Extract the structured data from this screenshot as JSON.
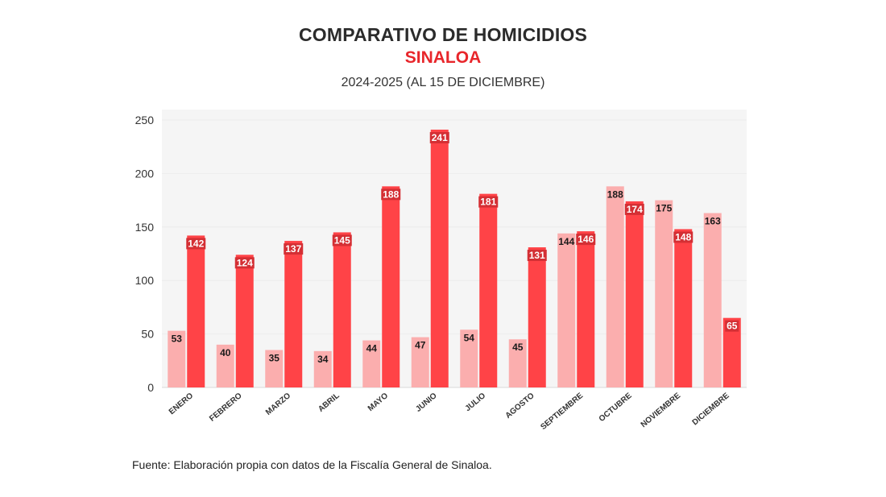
{
  "header": {
    "title": "COMPARATIVO DE HOMICIDIOS",
    "subtitle": "SINALOA",
    "period": "2024-2025 (AL 15 DE DICIEMBRE)"
  },
  "footer": {
    "source": "Fuente: Elaboración propia con datos de la Fiscalía General de Sinaloa."
  },
  "chart_data": {
    "type": "bar",
    "title": "COMPARATIVO DE HOMICIDIOS",
    "subtitle": "SINALOA",
    "xlabel": "",
    "ylabel": "",
    "ylim": [
      0,
      250
    ],
    "yticks": [
      0,
      50,
      100,
      150,
      200,
      250
    ],
    "grid": true,
    "categories": [
      "ENERO",
      "FEBRERO",
      "MARZO",
      "ABRIL",
      "MAYO",
      "JUNIO",
      "JULIO",
      "AGOSTO",
      "SEPTIEMBRE",
      "OCTUBRE",
      "NOVIEMBRE",
      "DICIEMBRE"
    ],
    "series": [
      {
        "values": [
          53,
          40,
          35,
          34,
          44,
          47,
          54,
          45,
          144,
          188,
          175,
          163
        ],
        "color": "#fbaeae"
      },
      {
        "values": [
          142,
          124,
          137,
          145,
          188,
          241,
          181,
          131,
          146,
          174,
          148,
          65
        ],
        "color": "#ff4347"
      }
    ]
  }
}
